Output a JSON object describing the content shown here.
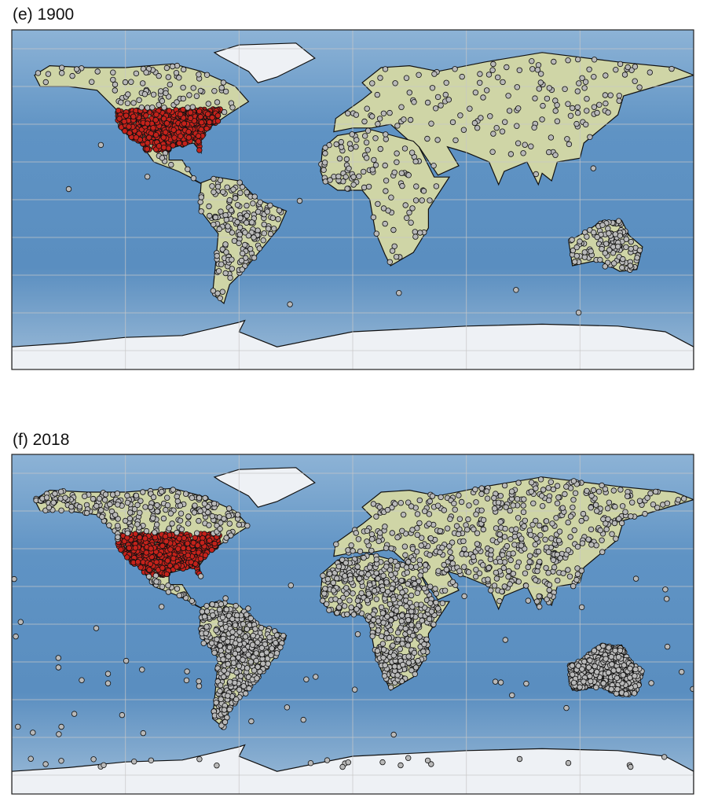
{
  "panels": [
    {
      "label": "(e) 1900"
    },
    {
      "label": "(f) 2018"
    }
  ]
}
